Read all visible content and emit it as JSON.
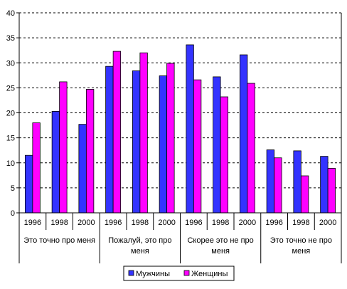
{
  "chart_data": {
    "type": "bar",
    "ylim": [
      0,
      40
    ],
    "ytick_step": 5,
    "grid": true,
    "groups": [
      {
        "label_lines": [
          "Это точно про меня"
        ],
        "years": [
          "1996",
          "1998",
          "2000"
        ]
      },
      {
        "label_lines": [
          "Пожалуй, это про",
          "меня"
        ],
        "years": [
          "1996",
          "1998",
          "2000"
        ]
      },
      {
        "label_lines": [
          "Скорее это не про",
          "меня"
        ],
        "years": [
          "1996",
          "1998",
          "2000"
        ]
      },
      {
        "label_lines": [
          "Это точно не про",
          "меня"
        ],
        "years": [
          "1996",
          "1998",
          "2000"
        ]
      }
    ],
    "series": [
      {
        "name": "Мужчины",
        "color": "#3333ff",
        "values": [
          11.5,
          20.3,
          17.7,
          29.3,
          28.4,
          27.4,
          33.6,
          27.2,
          31.6,
          12.6,
          12.4,
          11.3
        ]
      },
      {
        "name": "Женщины",
        "color": "#ff00ff",
        "values": [
          18.0,
          26.2,
          24.7,
          32.3,
          32.0,
          29.9,
          26.6,
          23.2,
          25.9,
          11.0,
          7.4,
          8.9
        ]
      }
    ],
    "legend_position": "bottom"
  }
}
